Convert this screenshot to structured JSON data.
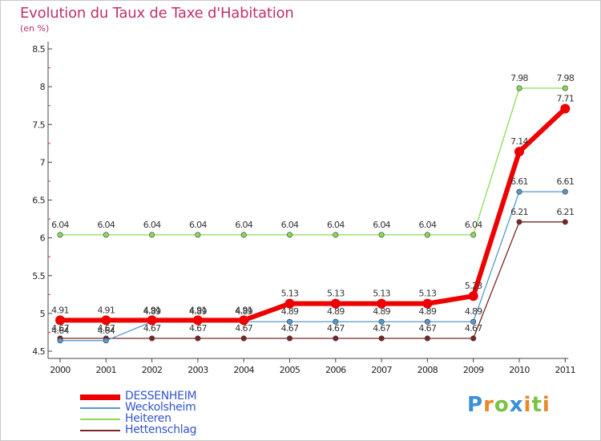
{
  "title": "Evolution du Taux de Taxe d'Habitation",
  "subtitle": "(en %)",
  "logo": {
    "letters": [
      "P",
      "r",
      "o",
      "x",
      "i",
      "t",
      "i"
    ],
    "colors": [
      "#3a8fd8",
      "#e8892a",
      "#7cc242",
      "#3a8fd8",
      "#e8892a",
      "#7cc242",
      "#e8892a"
    ]
  },
  "chart_data": {
    "type": "line",
    "title": "Evolution du Taux de Taxe d'Habitation",
    "ylabel": "(en %)",
    "xlabel": "",
    "ylim": [
      4.5,
      8.5
    ],
    "yticks": [
      "4.5",
      "5",
      "5.5",
      "6",
      "6.5",
      "7",
      "7.5",
      "8",
      "8.5"
    ],
    "x": [
      "2000",
      "2001",
      "2002",
      "2003",
      "2004",
      "2005",
      "2006",
      "2007",
      "2008",
      "2009",
      "2010",
      "2011"
    ],
    "grid": false,
    "legend_position": "bottom-left",
    "series": [
      {
        "name": "Hettenschlag",
        "color": "#7a2626",
        "values": [
          4.67,
          4.67,
          4.67,
          4.67,
          4.67,
          4.67,
          4.67,
          4.67,
          4.67,
          4.67,
          6.21,
          6.21
        ],
        "labels": [
          "4.67",
          "4.67",
          "4.67",
          "4.67",
          "4.67",
          "4.67",
          "4.67",
          "4.67",
          "4.67",
          "4.67",
          "6.21",
          "6.21"
        ]
      },
      {
        "name": "Heiteren",
        "color": "#88dd55",
        "values": [
          6.04,
          6.04,
          6.04,
          6.04,
          6.04,
          6.04,
          6.04,
          6.04,
          6.04,
          6.04,
          7.98,
          7.98
        ],
        "labels": [
          "6.04",
          "6.04",
          "6.04",
          "6.04",
          "6.04",
          "6.04",
          "6.04",
          "6.04",
          "6.04",
          "6.04",
          "7.98",
          "7.98"
        ]
      },
      {
        "name": "Weckolsheim",
        "color": "#5599cc",
        "values": [
          4.64,
          4.64,
          4.89,
          4.89,
          4.89,
          4.89,
          4.89,
          4.89,
          4.89,
          4.89,
          6.61,
          6.61
        ],
        "labels": [
          "4.64",
          "4.64",
          "4.89",
          "4.89",
          "4.89",
          "4.89",
          "4.89",
          "4.89",
          "4.89",
          "4.89",
          "6.61",
          "6.61"
        ]
      },
      {
        "name": "DESSENHEIM",
        "color": "#ee0000",
        "values": [
          4.91,
          4.91,
          4.91,
          4.91,
          4.91,
          5.13,
          5.13,
          5.13,
          5.13,
          5.23,
          7.14,
          7.71
        ],
        "labels": [
          "4.91",
          "4.91",
          "4.91",
          "4.91",
          "4.91",
          "5.13",
          "5.13",
          "5.13",
          "5.13",
          "5.23",
          "7.14",
          "7.71"
        ]
      }
    ],
    "legend": [
      "DESSENHEIM",
      "Weckolsheim",
      "Heiteren",
      "Hettenschlag"
    ]
  }
}
